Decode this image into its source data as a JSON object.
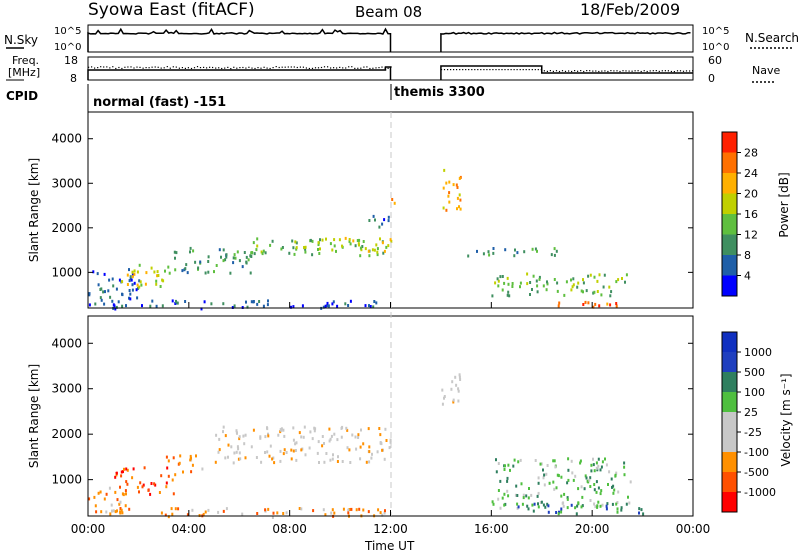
{
  "header": {
    "title": "Syowa East (fitACF)",
    "beam": "Beam 08",
    "date": "18/Feb/2009"
  },
  "nsky_panel": {
    "left_label": "N.Sky",
    "right_label": "N.Search",
    "left_ticks": [
      "10^5",
      "10^0"
    ],
    "right_ticks": [
      "10^5",
      "10^0"
    ]
  },
  "freq_panel": {
    "left_label_1": "Freq.",
    "left_label_2": "[MHz]",
    "right_label": "Nave",
    "left_ticks": [
      "18",
      "8"
    ],
    "right_ticks": [
      "60",
      "0"
    ]
  },
  "cpid": {
    "label": "CPID",
    "segments": [
      "normal (fast) -151",
      "themis 3300"
    ]
  },
  "colors": {
    "power": [
      "#0000ff",
      "#1f5fa8",
      "#3f8f60",
      "#5fbf3f",
      "#c0d000",
      "#ffb000",
      "#ff7000",
      "#ff2000"
    ],
    "velocity": [
      "#ff0000",
      "#ff5000",
      "#ff9000",
      "#c8c8c8",
      "#c8c8c8",
      "#4fbf3f",
      "#2f7f5f",
      "#1f3fbf",
      "#1030c0"
    ]
  },
  "chart_data": [
    {
      "type": "heatmap",
      "name": "power",
      "ylabel": "Slant Range [km]",
      "yticks": [
        1000,
        2000,
        3000,
        4000
      ],
      "colorbar_label": "Power [dB]",
      "colorbar_ticks": [
        4,
        8,
        12,
        16,
        20,
        24,
        28
      ],
      "regions": [
        {
          "t0": 0.0,
          "t1": 2.0,
          "r0": 300,
          "r1": 1100,
          "level": 1
        },
        {
          "t0": 1.3,
          "t1": 3.3,
          "r0": 700,
          "r1": 1200,
          "level": 4
        },
        {
          "t0": 3.0,
          "t1": 6.5,
          "r0": 1000,
          "r1": 1600,
          "level": 2
        },
        {
          "t0": 6.5,
          "t1": 12.0,
          "r0": 1400,
          "r1": 1800,
          "level": 3
        },
        {
          "t0": 8.5,
          "t1": 12.0,
          "r0": 1500,
          "r1": 1800,
          "level": 4
        },
        {
          "t0": 11.0,
          "t1": 12.0,
          "r0": 2000,
          "r1": 2300,
          "level": 1
        },
        {
          "t0": 12.0,
          "t1": 12.2,
          "r0": 2400,
          "r1": 2800,
          "level": 5
        },
        {
          "t0": 14.0,
          "t1": 14.8,
          "r0": 2400,
          "r1": 3400,
          "level": 5
        },
        {
          "t0": 15.0,
          "t1": 18.8,
          "r0": 1400,
          "r1": 1600,
          "level": 2
        },
        {
          "t0": 16.0,
          "t1": 21.5,
          "r0": 500,
          "r1": 1000,
          "level": 3
        },
        {
          "t0": 18.5,
          "t1": 21.0,
          "r0": 250,
          "r1": 400,
          "level": 6
        },
        {
          "t0": 20.0,
          "t1": 21.0,
          "r0": 250,
          "r1": 350,
          "level": 7
        },
        {
          "t0": 0.0,
          "t1": 12.0,
          "r0": 200,
          "r1": 400,
          "level": 1
        }
      ]
    },
    {
      "type": "heatmap",
      "name": "velocity",
      "ylabel": "Slant Range [km]",
      "yticks": [
        1000,
        2000,
        3000,
        4000
      ],
      "xlabel": "Time UT",
      "xticks": [
        "00:00",
        "04:00",
        "08:00",
        "12:00",
        "16:00",
        "20:00",
        "00:00"
      ],
      "colorbar_label": "Velocity [m s⁻¹]",
      "colorbar_ticks": [
        1000,
        500,
        100,
        25,
        -25,
        -100,
        -500,
        -1000
      ],
      "regions": [
        {
          "t0": 0.0,
          "t1": 1.5,
          "r0": 300,
          "r1": 900,
          "level": 2
        },
        {
          "t0": 1.0,
          "t1": 3.5,
          "r0": 700,
          "r1": 1300,
          "level": 1
        },
        {
          "t0": 3.0,
          "t1": 4.5,
          "r0": 1200,
          "r1": 1600,
          "level": 2
        },
        {
          "t0": 5.0,
          "t1": 12.0,
          "r0": 1400,
          "r1": 2200,
          "level": 3
        },
        {
          "t0": 14.0,
          "t1": 14.8,
          "r0": 2600,
          "r1": 3400,
          "level": 3
        },
        {
          "t0": 16.0,
          "t1": 21.5,
          "r0": 400,
          "r1": 1500,
          "level": 5
        },
        {
          "t0": 17.0,
          "t1": 22.0,
          "r0": 250,
          "r1": 500,
          "level": 6
        },
        {
          "t0": 0.0,
          "t1": 12.0,
          "r0": 200,
          "r1": 400,
          "level": 2
        }
      ]
    }
  ]
}
